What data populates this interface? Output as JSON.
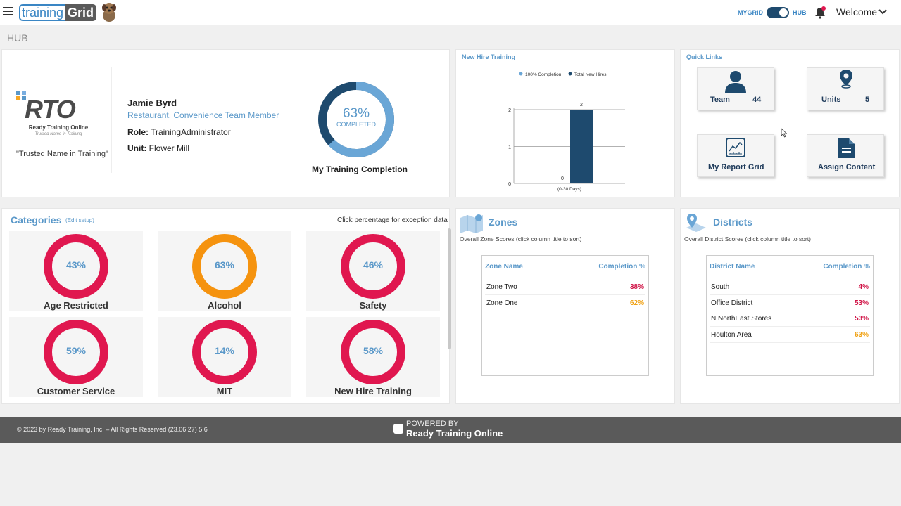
{
  "header": {
    "logo_training": "training",
    "logo_grid": "Grid",
    "toggle_left": "MYGRID",
    "toggle_right": "HUB",
    "welcome": "Welcome"
  },
  "page_title": "HUB",
  "profile": {
    "org_logo": "RTO",
    "org_name": "Ready Training Online",
    "org_tagline": "Trusted Name in Training",
    "quote": "\"Trusted Name in Training\"",
    "name": "Jamie Byrd",
    "title": "Restaurant, Convenience Team Member",
    "role_label": "Role:",
    "role_value": "TrainingAdministrator",
    "unit_label": "Unit:",
    "unit_value": "Flower Mill",
    "completion_pct": "63%",
    "completion_fraction": 0.63,
    "completion_sub": "COMPLETED",
    "completion_caption": "My Training Completion"
  },
  "new_hire": {
    "title": "New Hire Training",
    "chart_data": {
      "type": "bar",
      "categories": [
        "(0-30 Days)"
      ],
      "series": [
        {
          "name": "100% Completion",
          "values": [
            0
          ],
          "color": "#6aa6d6"
        },
        {
          "name": "Total New Hires",
          "values": [
            2
          ],
          "color": "#1e4a6e"
        }
      ],
      "ylim": [
        0,
        2
      ],
      "yticks": [
        "0",
        "1",
        "2"
      ],
      "legend": "top",
      "grid": true,
      "data_labels": [
        "0",
        "2"
      ]
    }
  },
  "quick_links": {
    "title": "Quick Links",
    "team_label": "Team",
    "team_count": "44",
    "units_label": "Units",
    "units_count": "5",
    "report_label": "My Report Grid",
    "assign_label": "Assign Content"
  },
  "categories": {
    "title": "Categories",
    "edit": "(Edit setup)",
    "hint": "Click percentage for exception data",
    "items": [
      {
        "label": "Age Restricted",
        "pct": "43%",
        "color": "#e0174f"
      },
      {
        "label": "Alcohol",
        "pct": "63%",
        "color": "#f5930f"
      },
      {
        "label": "Safety",
        "pct": "46%",
        "color": "#e0174f"
      },
      {
        "label": "Customer Service",
        "pct": "59%",
        "color": "#e0174f"
      },
      {
        "label": "MIT",
        "pct": "14%",
        "color": "#e0174f"
      },
      {
        "label": "New Hire Training",
        "pct": "58%",
        "color": "#e0174f"
      }
    ]
  },
  "zones": {
    "title": "Zones",
    "subtitle": "Overall Zone Scores (click column title to sort)",
    "col_name": "Zone Name",
    "col_pct": "Completion %",
    "rows": [
      {
        "name": "Zone Two",
        "pct": "38%",
        "color": "#d01245"
      },
      {
        "name": "Zone One",
        "pct": "62%",
        "color": "#f0a010"
      }
    ]
  },
  "districts": {
    "title": "Districts",
    "subtitle": "Overall District Scores (click column title to sort)",
    "col_name": "District Name",
    "col_pct": "Completion %",
    "rows": [
      {
        "name": "South",
        "pct": "4%",
        "color": "#d01245"
      },
      {
        "name": "Office District",
        "pct": "53%",
        "color": "#d01245"
      },
      {
        "name": "N NorthEast Stores",
        "pct": "53%",
        "color": "#d01245"
      },
      {
        "name": "Houlton Area",
        "pct": "63%",
        "color": "#f0a010"
      }
    ]
  },
  "footer": {
    "copyright": "© 2023 by Ready Training, Inc. – All Rights Reserved (23.06.27) 5.6",
    "powered_by": "POWERED BY",
    "brand": "Ready Training Online"
  },
  "colors": {
    "accent": "#5a98c9",
    "dark_navy": "#1e4a6e",
    "red": "#e0174f",
    "orange": "#f5930f"
  }
}
